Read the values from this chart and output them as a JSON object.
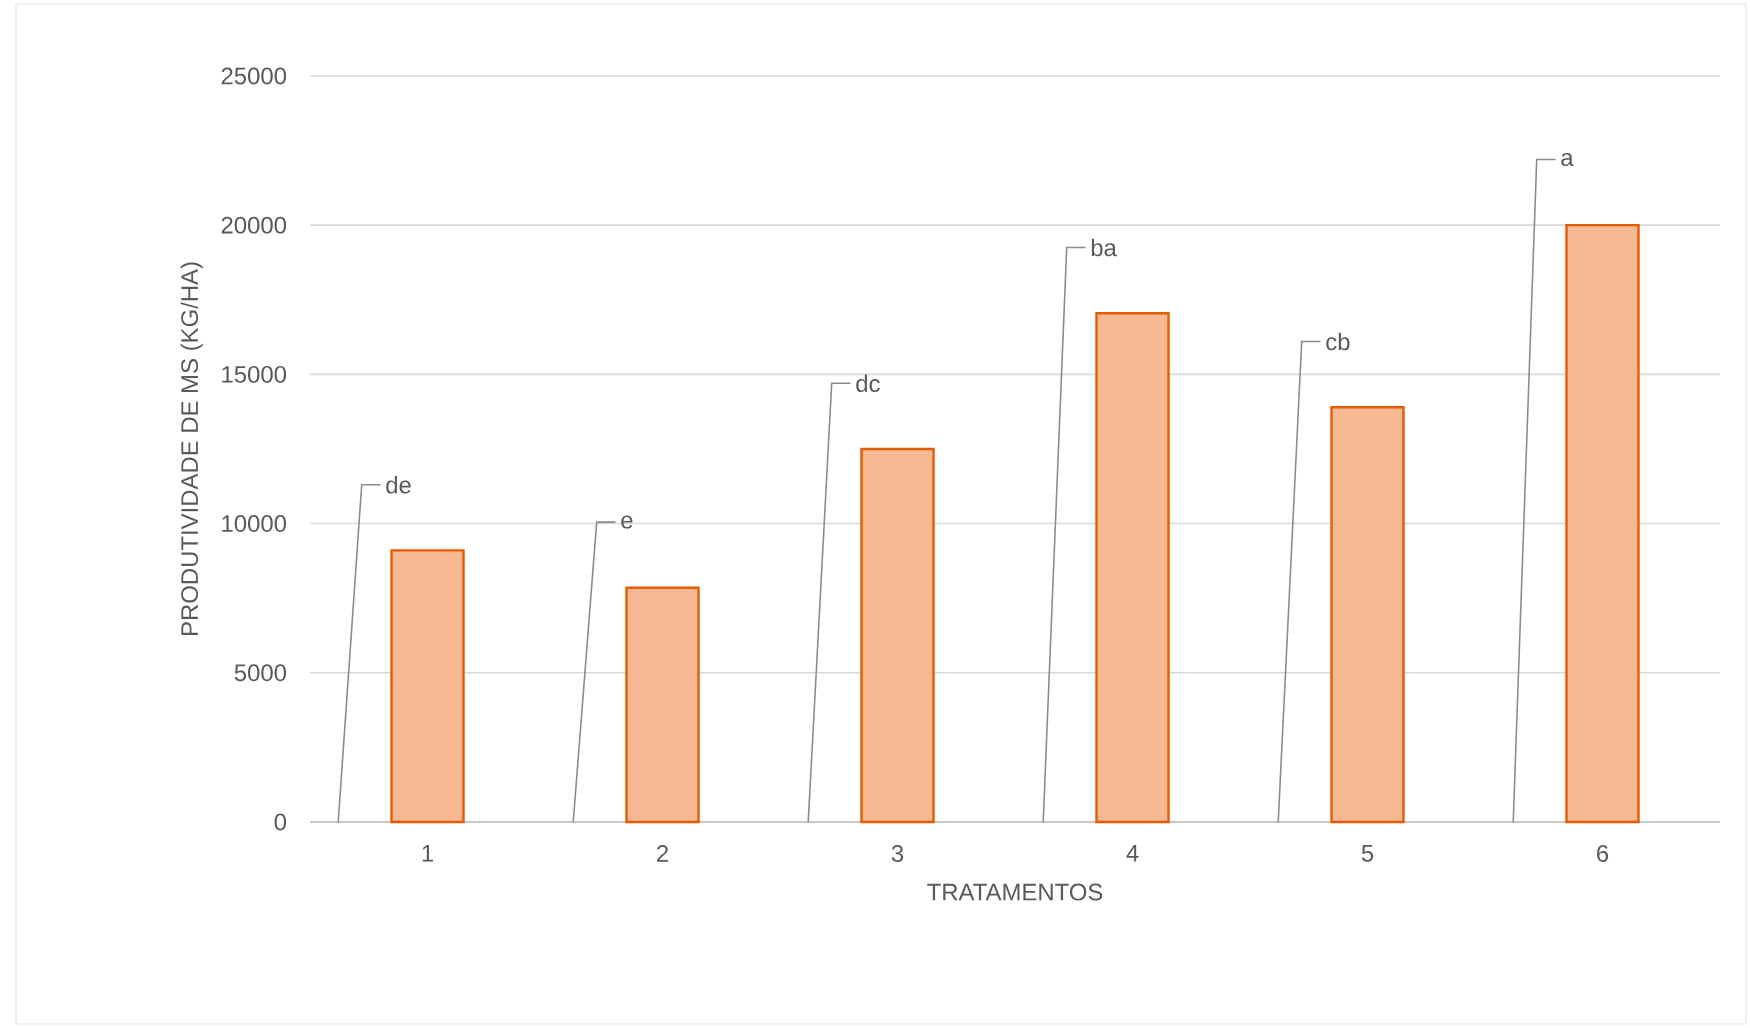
{
  "chart_data": {
    "type": "bar",
    "xlabel": "TRATAMENTOS",
    "ylabel": "PRODUTIVIDADE DE MS (KG/HA)",
    "categories": [
      "1",
      "2",
      "3",
      "4",
      "5",
      "6"
    ],
    "values": [
      9100,
      7850,
      12500,
      17050,
      13900,
      20000
    ],
    "color": "#f6b793",
    "value_labels": [
      "de",
      "e",
      "dc",
      "ba",
      "cb",
      "a"
    ],
    "ylim": [
      0,
      25000
    ],
    "yticks": [
      0,
      5000,
      10000,
      15000,
      20000,
      25000
    ],
    "grid": "y"
  }
}
